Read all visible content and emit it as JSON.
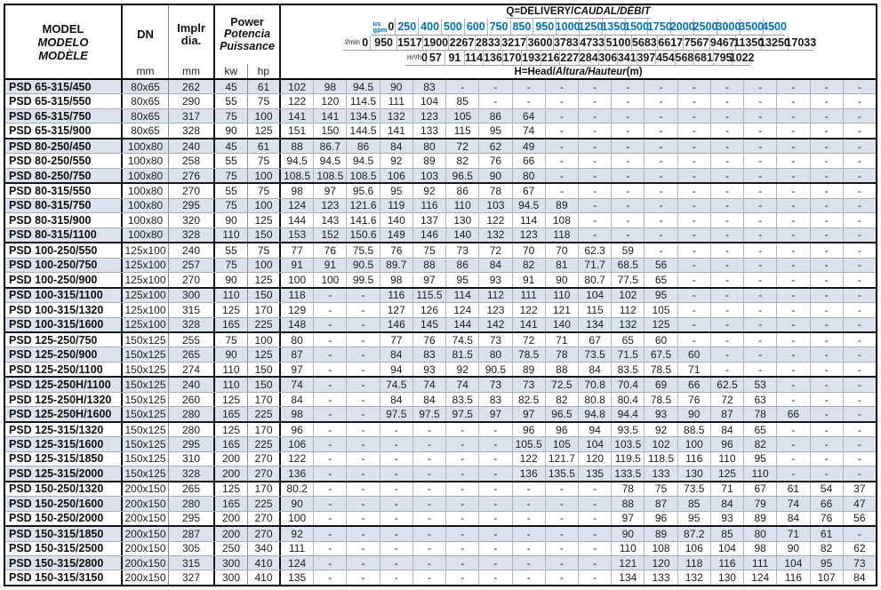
{
  "colors": {
    "accent_blue": "#0070c0",
    "row_shade": "#dbe2ee"
  },
  "table": {
    "header": {
      "model_lines": [
        "MODEL",
        "MODELO",
        "MODÈLE"
      ],
      "dn_label": "DN",
      "dn_unit": "mm",
      "implr_lines": [
        "Implr",
        "dia."
      ],
      "implr_unit": "mm",
      "power_lines": [
        "Power",
        "Potencia",
        "Puissance"
      ],
      "power_units": [
        "kw",
        "hp"
      ],
      "q_title": {
        "plain": "Q=DELIVERY/",
        "italic": "CAUDAL/DÉBIT"
      },
      "h_title": {
        "plain": "H=Head/",
        "italic": "Altura/Hauteur",
        "unit": "(m)"
      },
      "flow_rows": [
        {
          "unit": "us gpm",
          "unit_lines": [
            "us",
            "gpm"
          ],
          "values": [
            "0",
            "250",
            "400",
            "500",
            "600",
            "750",
            "850",
            "950",
            "1000",
            "1250",
            "1350",
            "1500",
            "1750",
            "2000",
            "2500",
            "3000",
            "3500",
            "4500"
          ]
        },
        {
          "unit": "l/min",
          "values": [
            "0",
            "950",
            "1517",
            "1900",
            "2267",
            "2833",
            "3217",
            "3600",
            "3783",
            "4733",
            "5100",
            "5683",
            "6617",
            "7567",
            "9467",
            "11350",
            "13250",
            "17033"
          ]
        },
        {
          "unit": "m³/h",
          "values": [
            "0",
            "57",
            "91",
            "114",
            "136",
            "170",
            "193",
            "216",
            "227",
            "284",
            "306",
            "341",
            "397",
            "454",
            "568",
            "681",
            "795",
            "1022"
          ]
        }
      ]
    },
    "rows": [
      {
        "model": "PSD 65-315/450",
        "dn": "80x65",
        "dia": "262",
        "kw": "45",
        "hp": "61",
        "group_end": false,
        "heads": [
          "102",
          "98",
          "94.5",
          "90",
          "83",
          "-",
          "-",
          "-",
          "-",
          "-",
          "-",
          "-",
          "-",
          "-",
          "-",
          "-",
          "-",
          "-"
        ]
      },
      {
        "model": "PSD 65-315/550",
        "dn": "80x65",
        "dia": "290",
        "kw": "55",
        "hp": "75",
        "group_end": false,
        "heads": [
          "122",
          "120",
          "114.5",
          "111",
          "104",
          "85",
          "-",
          "-",
          "-",
          "-",
          "-",
          "-",
          "-",
          "-",
          "-",
          "-",
          "-",
          "-"
        ]
      },
      {
        "model": "PSD 65-315/750",
        "dn": "80x65",
        "dia": "317",
        "kw": "75",
        "hp": "100",
        "group_end": false,
        "heads": [
          "141",
          "141",
          "134.5",
          "132",
          "123",
          "105",
          "86",
          "64",
          "-",
          "-",
          "-",
          "-",
          "-",
          "-",
          "-",
          "-",
          "-",
          "-"
        ]
      },
      {
        "model": "PSD 65-315/900",
        "dn": "80x65",
        "dia": "328",
        "kw": "90",
        "hp": "125",
        "group_end": true,
        "heads": [
          "151",
          "150",
          "144.5",
          "141",
          "133",
          "115",
          "95",
          "74",
          "-",
          "-",
          "-",
          "-",
          "-",
          "-",
          "-",
          "-",
          "-",
          "-"
        ]
      },
      {
        "model": "PSD 80-250/450",
        "dn": "100x80",
        "dia": "240",
        "kw": "45",
        "hp": "61",
        "group_end": false,
        "heads": [
          "88",
          "86.7",
          "86",
          "84",
          "80",
          "72",
          "62",
          "49",
          "-",
          "-",
          "-",
          "-",
          "-",
          "-",
          "-",
          "-",
          "-",
          "-"
        ]
      },
      {
        "model": "PSD 80-250/550",
        "dn": "100x80",
        "dia": "258",
        "kw": "55",
        "hp": "75",
        "group_end": false,
        "heads": [
          "94.5",
          "94.5",
          "94.5",
          "92",
          "89",
          "82",
          "76",
          "66",
          "-",
          "-",
          "-",
          "-",
          "-",
          "-",
          "-",
          "-",
          "-",
          "-"
        ]
      },
      {
        "model": "PSD 80-250/750",
        "dn": "100x80",
        "dia": "276",
        "kw": "75",
        "hp": "100",
        "group_end": true,
        "heads": [
          "108.5",
          "108.5",
          "108.5",
          "106",
          "103",
          "96.5",
          "90",
          "80",
          "-",
          "-",
          "-",
          "-",
          "-",
          "-",
          "-",
          "-",
          "-",
          "-"
        ]
      },
      {
        "model": "PSD 80-315/550",
        "dn": "100x80",
        "dia": "270",
        "kw": "55",
        "hp": "75",
        "group_end": false,
        "heads": [
          "98",
          "97",
          "95.6",
          "95",
          "92",
          "86",
          "78",
          "67",
          "-",
          "-",
          "-",
          "-",
          "-",
          "-",
          "-",
          "-",
          "-",
          "-"
        ]
      },
      {
        "model": "PSD 80-315/750",
        "dn": "100x80",
        "dia": "295",
        "kw": "75",
        "hp": "100",
        "group_end": false,
        "heads": [
          "124",
          "123",
          "121.6",
          "119",
          "116",
          "110",
          "103",
          "94.5",
          "89",
          "-",
          "-",
          "-",
          "-",
          "-",
          "-",
          "-",
          "-",
          "-"
        ]
      },
      {
        "model": "PSD 80-315/900",
        "dn": "100x80",
        "dia": "320",
        "kw": "90",
        "hp": "125",
        "group_end": false,
        "heads": [
          "144",
          "143",
          "141.6",
          "140",
          "137",
          "130",
          "122",
          "114",
          "108",
          "-",
          "-",
          "-",
          "-",
          "-",
          "-",
          "-",
          "-",
          "-"
        ]
      },
      {
        "model": "PSD 80-315/1100",
        "dn": "100x80",
        "dia": "328",
        "kw": "110",
        "hp": "150",
        "group_end": true,
        "heads": [
          "153",
          "152",
          "150.6",
          "149",
          "146",
          "140",
          "132",
          "123",
          "118",
          "-",
          "-",
          "-",
          "-",
          "-",
          "-",
          "-",
          "-",
          "-"
        ]
      },
      {
        "model": "PSD 100-250/550",
        "dn": "125x100",
        "dia": "240",
        "kw": "55",
        "hp": "75",
        "group_end": false,
        "heads": [
          "77",
          "76",
          "75.5",
          "76",
          "75",
          "73",
          "72",
          "70",
          "70",
          "62.3",
          "59",
          "-",
          "-",
          "-",
          "-",
          "-",
          "-",
          "-"
        ]
      },
      {
        "model": "PSD 100-250/750",
        "dn": "125x100",
        "dia": "257",
        "kw": "75",
        "hp": "100",
        "group_end": false,
        "heads": [
          "91",
          "91",
          "90.5",
          "89.7",
          "88",
          "86",
          "84",
          "82",
          "81",
          "71.7",
          "68.5",
          "56",
          "-",
          "-",
          "-",
          "-",
          "-",
          "-"
        ]
      },
      {
        "model": "PSD 100-250/900",
        "dn": "125x100",
        "dia": "270",
        "kw": "90",
        "hp": "125",
        "group_end": true,
        "heads": [
          "100",
          "100",
          "99.5",
          "98",
          "97",
          "95",
          "93",
          "91",
          "90",
          "80.7",
          "77.5",
          "65",
          "-",
          "-",
          "-",
          "-",
          "-",
          "-"
        ]
      },
      {
        "model": "PSD 100-315/1100",
        "dn": "125x100",
        "dia": "300",
        "kw": "110",
        "hp": "150",
        "group_end": false,
        "heads": [
          "118",
          "-",
          "-",
          "116",
          "115.5",
          "114",
          "112",
          "111",
          "110",
          "104",
          "102",
          "95",
          "-",
          "-",
          "-",
          "-",
          "-",
          "-"
        ]
      },
      {
        "model": "PSD 100-315/1320",
        "dn": "125x100",
        "dia": "315",
        "kw": "125",
        "hp": "170",
        "group_end": false,
        "heads": [
          "129",
          "-",
          "-",
          "127",
          "126",
          "124",
          "123",
          "122",
          "121",
          "115",
          "112",
          "105",
          "-",
          "-",
          "-",
          "-",
          "-",
          "-"
        ]
      },
      {
        "model": "PSD 100-315/1600",
        "dn": "125x100",
        "dia": "328",
        "kw": "165",
        "hp": "225",
        "group_end": true,
        "heads": [
          "148",
          "-",
          "-",
          "146",
          "145",
          "144",
          "142",
          "141",
          "140",
          "134",
          "132",
          "125",
          "-",
          "-",
          "-",
          "-",
          "-",
          "-"
        ]
      },
      {
        "model": "PSD 125-250/750",
        "dn": "150x125",
        "dia": "255",
        "kw": "75",
        "hp": "100",
        "group_end": false,
        "heads": [
          "80",
          "-",
          "-",
          "77",
          "76",
          "74.5",
          "73",
          "72",
          "71",
          "67",
          "65",
          "60",
          "-",
          "-",
          "-",
          "-",
          "-",
          "-"
        ]
      },
      {
        "model": "PSD 125-250/900",
        "dn": "150x125",
        "dia": "265",
        "kw": "90",
        "hp": "125",
        "group_end": false,
        "heads": [
          "87",
          "-",
          "-",
          "84",
          "83",
          "81.5",
          "80",
          "78.5",
          "78",
          "73.5",
          "71.5",
          "67.5",
          "60",
          "-",
          "-",
          "-",
          "-",
          "-"
        ]
      },
      {
        "model": "PSD 125-250/1100",
        "dn": "150x125",
        "dia": "274",
        "kw": "110",
        "hp": "150",
        "group_end": true,
        "heads": [
          "97",
          "-",
          "-",
          "94",
          "93",
          "92",
          "90.5",
          "89",
          "88",
          "84",
          "83.5",
          "78.5",
          "71",
          "-",
          "-",
          "-",
          "-",
          "-"
        ]
      },
      {
        "model": "PSD 125-250H/1100",
        "dn": "150x125",
        "dia": "240",
        "kw": "110",
        "hp": "150",
        "group_end": false,
        "heads": [
          "74",
          "-",
          "-",
          "74.5",
          "74",
          "74",
          "73",
          "73",
          "72.5",
          "70.8",
          "70.4",
          "69",
          "66",
          "62.5",
          "53",
          "-",
          "-",
          "-"
        ]
      },
      {
        "model": "PSD 125-250H/1320",
        "dn": "150x125",
        "dia": "260",
        "kw": "125",
        "hp": "170",
        "group_end": false,
        "heads": [
          "84",
          "-",
          "-",
          "84",
          "84",
          "83.5",
          "83",
          "82.5",
          "82",
          "80.8",
          "80.4",
          "78.5",
          "76",
          "72",
          "63",
          "-",
          "-",
          "-"
        ]
      },
      {
        "model": "PSD 125-250H/1600",
        "dn": "150x125",
        "dia": "280",
        "kw": "165",
        "hp": "225",
        "group_end": true,
        "heads": [
          "98",
          "-",
          "-",
          "97.5",
          "97.5",
          "97.5",
          "97",
          "97",
          "96.5",
          "94.8",
          "94.4",
          "93",
          "90",
          "87",
          "78",
          "66",
          "-",
          "-"
        ]
      },
      {
        "model": "PSD 125-315/1320",
        "dn": "150x125",
        "dia": "280",
        "kw": "125",
        "hp": "170",
        "group_end": false,
        "heads": [
          "96",
          "-",
          "-",
          "-",
          "-",
          "-",
          "-",
          "96",
          "96",
          "94",
          "93.5",
          "92",
          "88.5",
          "84",
          "65",
          "-",
          "-",
          "-"
        ]
      },
      {
        "model": "PSD 125-315/1600",
        "dn": "150x125",
        "dia": "295",
        "kw": "165",
        "hp": "225",
        "group_end": false,
        "heads": [
          "106",
          "-",
          "-",
          "-",
          "-",
          "-",
          "-",
          "105.5",
          "105",
          "104",
          "103.5",
          "102",
          "100",
          "96",
          "82",
          "-",
          "-",
          "-"
        ]
      },
      {
        "model": "PSD 125-315/1850",
        "dn": "150x125",
        "dia": "310",
        "kw": "200",
        "hp": "270",
        "group_end": false,
        "heads": [
          "122",
          "-",
          "-",
          "-",
          "-",
          "-",
          "-",
          "122",
          "121.7",
          "120",
          "119.5",
          "118.5",
          "116",
          "110",
          "95",
          "-",
          "-",
          "-"
        ]
      },
      {
        "model": "PSD 125-315/2000",
        "dn": "150x125",
        "dia": "328",
        "kw": "200",
        "hp": "270",
        "group_end": true,
        "heads": [
          "136",
          "-",
          "-",
          "-",
          "-",
          "-",
          "-",
          "136",
          "135.5",
          "135",
          "133.5",
          "133",
          "130",
          "125",
          "110",
          "-",
          "-",
          "-"
        ]
      },
      {
        "model": "PSD 150-250/1320",
        "dn": "200x150",
        "dia": "265",
        "kw": "125",
        "hp": "170",
        "group_end": false,
        "heads": [
          "80.2",
          "-",
          "-",
          "-",
          "-",
          "-",
          "-",
          "-",
          "-",
          "-",
          "78",
          "75",
          "73.5",
          "71",
          "67",
          "61",
          "54",
          "37"
        ]
      },
      {
        "model": "PSD 150-250/1600",
        "dn": "200x150",
        "dia": "280",
        "kw": "165",
        "hp": "225",
        "group_end": false,
        "heads": [
          "90",
          "-",
          "-",
          "-",
          "-",
          "-",
          "-",
          "-",
          "-",
          "-",
          "88",
          "87",
          "85",
          "84",
          "79",
          "74",
          "66",
          "47"
        ]
      },
      {
        "model": "PSD 150-250/2000",
        "dn": "200x150",
        "dia": "295",
        "kw": "200",
        "hp": "270",
        "group_end": true,
        "heads": [
          "100",
          "-",
          "-",
          "-",
          "-",
          "-",
          "-",
          "-",
          "-",
          "-",
          "97",
          "96",
          "95",
          "93",
          "89",
          "84",
          "76",
          "56"
        ]
      },
      {
        "model": "PSD 150-315/1850",
        "dn": "200x150",
        "dia": "287",
        "kw": "200",
        "hp": "270",
        "group_end": false,
        "heads": [
          "92",
          "-",
          "-",
          "-",
          "-",
          "-",
          "-",
          "-",
          "-",
          "-",
          "90",
          "89",
          "87.2",
          "85",
          "80",
          "71",
          "61",
          "-"
        ]
      },
      {
        "model": "PSD 150-315/2500",
        "dn": "200x150",
        "dia": "305",
        "kw": "250",
        "hp": "340",
        "group_end": false,
        "heads": [
          "111",
          "-",
          "-",
          "-",
          "-",
          "-",
          "-",
          "-",
          "-",
          "-",
          "110",
          "108",
          "106",
          "104",
          "98",
          "90",
          "82",
          "62"
        ]
      },
      {
        "model": "PSD 150-315/2800",
        "dn": "200x150",
        "dia": "315",
        "kw": "300",
        "hp": "410",
        "group_end": false,
        "heads": [
          "124",
          "-",
          "-",
          "-",
          "-",
          "-",
          "-",
          "-",
          "-",
          "-",
          "121",
          "120",
          "118",
          "116",
          "111",
          "104",
          "95",
          "73"
        ]
      },
      {
        "model": "PSD 150-315/3150",
        "dn": "200x150",
        "dia": "327",
        "kw": "300",
        "hp": "410",
        "group_end": false,
        "heads": [
          "135",
          "-",
          "-",
          "-",
          "-",
          "-",
          "-",
          "-",
          "-",
          "-",
          "134",
          "133",
          "132",
          "130",
          "124",
          "116",
          "107",
          "84"
        ]
      }
    ]
  }
}
